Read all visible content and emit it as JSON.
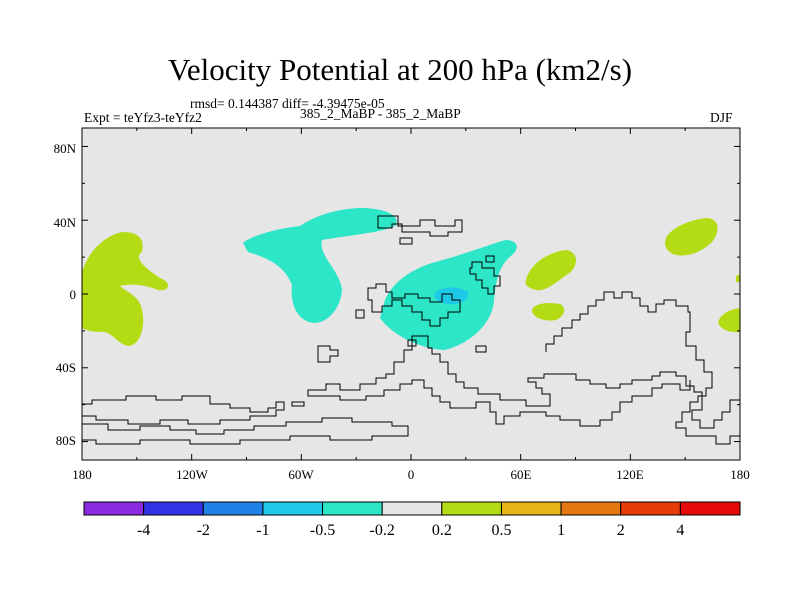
{
  "chart_data": {
    "type": "heatmap",
    "title": "Velocity Potential at 200 hPa (km2/s)",
    "stats_text": "rmsd= 0.144387 diff= -4.39475e-05",
    "left_subtitle": "Expt = teYfz3-teYfz2",
    "center_subtitle": "385_2_MaBP - 385_2_MaBP",
    "right_subtitle": "DJF",
    "x_ticks": [
      "180",
      "120W",
      "60W",
      "0",
      "60E",
      "120E",
      "180"
    ],
    "y_ticks": [
      "80N",
      "40N",
      "0",
      "40S",
      "80S"
    ],
    "x_range": [
      -180,
      180
    ],
    "y_range": [
      -90,
      90
    ],
    "colorbar": {
      "colors": [
        "#8a2be2",
        "#3232e6",
        "#1e82e6",
        "#1ec8e6",
        "#2de6c8",
        "#e6e6e6",
        "#b4dc14",
        "#e6b414",
        "#e67814",
        "#e63c0a",
        "#e60a0a"
      ],
      "labels": [
        "-4",
        "-2",
        "-1",
        "-0.5",
        "-0.2",
        "0.2",
        "0.5",
        "1",
        "2",
        "4"
      ]
    },
    "field_regions": [
      {
        "name": "north-pacific-negative",
        "level": "-0.5 to -0.2",
        "color": "#2de6c8"
      },
      {
        "name": "africa-negative",
        "level": "-0.5 to -0.2",
        "color": "#2de6c8"
      },
      {
        "name": "africa-core-negative",
        "level": "-1 to -0.5",
        "color": "#1ec8e6"
      },
      {
        "name": "east-pacific-positive",
        "level": "0.2 to 0.5",
        "color": "#b4dc14"
      },
      {
        "name": "indian-ocean-positive",
        "level": "0.2 to 0.5",
        "color": "#b4dc14"
      },
      {
        "name": "west-pacific-positive",
        "level": "0.2 to 0.5",
        "color": "#b4dc14"
      }
    ]
  }
}
